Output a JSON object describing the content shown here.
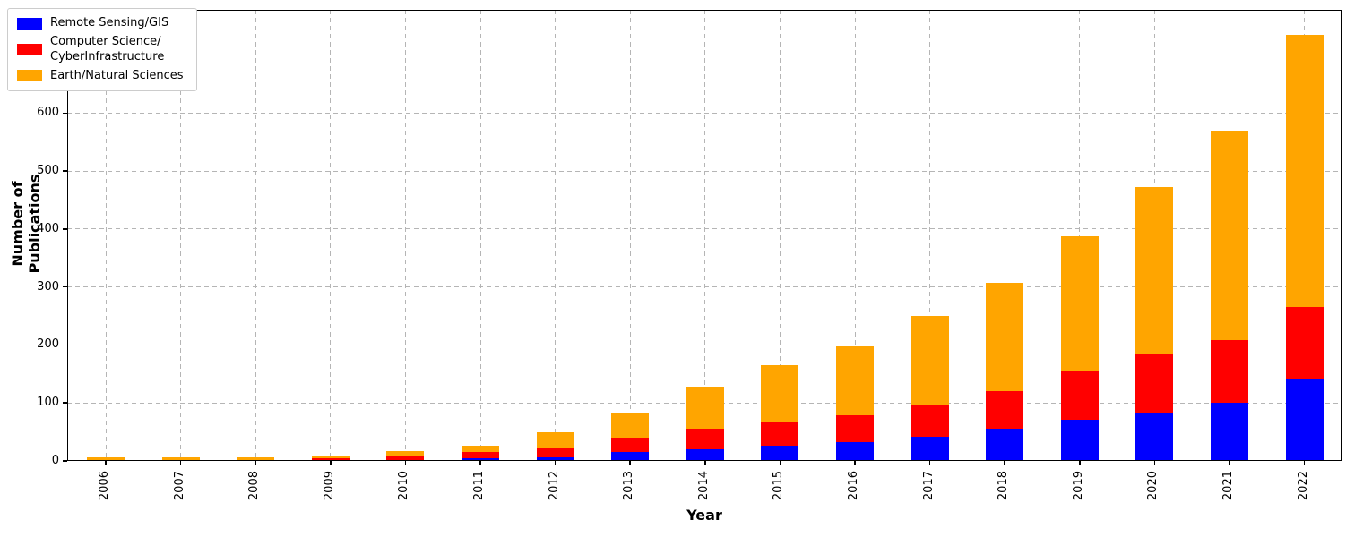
{
  "figure": {
    "background": "#ffffff"
  },
  "chart_data": {
    "type": "bar",
    "stacked": true,
    "title": "",
    "xlabel": "Year",
    "ylabel": "Number of Publications",
    "categories": [
      "2006",
      "2007",
      "2008",
      "2009",
      "2010",
      "2011",
      "2012",
      "2013",
      "2014",
      "2015",
      "2016",
      "2017",
      "2018",
      "2019",
      "2020",
      "2021",
      "2022"
    ],
    "series": [
      {
        "name": "Remote Sensing/GIS",
        "color": "#0000ff",
        "values": [
          0,
          0,
          0,
          1,
          2,
          4,
          6,
          15,
          20,
          26,
          33,
          41,
          55,
          71,
          84,
          100,
          142
        ]
      },
      {
        "name": "Computer Science/\nCyberInfrastructure",
        "color": "#ff0000",
        "values": [
          2,
          2,
          2,
          3,
          7,
          12,
          15,
          25,
          35,
          40,
          46,
          55,
          66,
          83,
          99,
          109,
          123
        ]
      },
      {
        "name": "Earth/Natural Sciences",
        "color": "#ffa500",
        "values": [
          4,
          4,
          4,
          6,
          8,
          11,
          28,
          44,
          73,
          99,
          119,
          154,
          186,
          233,
          290,
          361,
          470
        ]
      }
    ],
    "yticks": [
      0,
      100,
      200,
      300,
      400,
      500,
      600,
      700
    ],
    "ylim": [
      0,
      778
    ],
    "grid": true,
    "grid_style": "dashed",
    "grid_color": "#b5b5b5",
    "axis_color": "#000000",
    "legend_position": "upper-left"
  }
}
